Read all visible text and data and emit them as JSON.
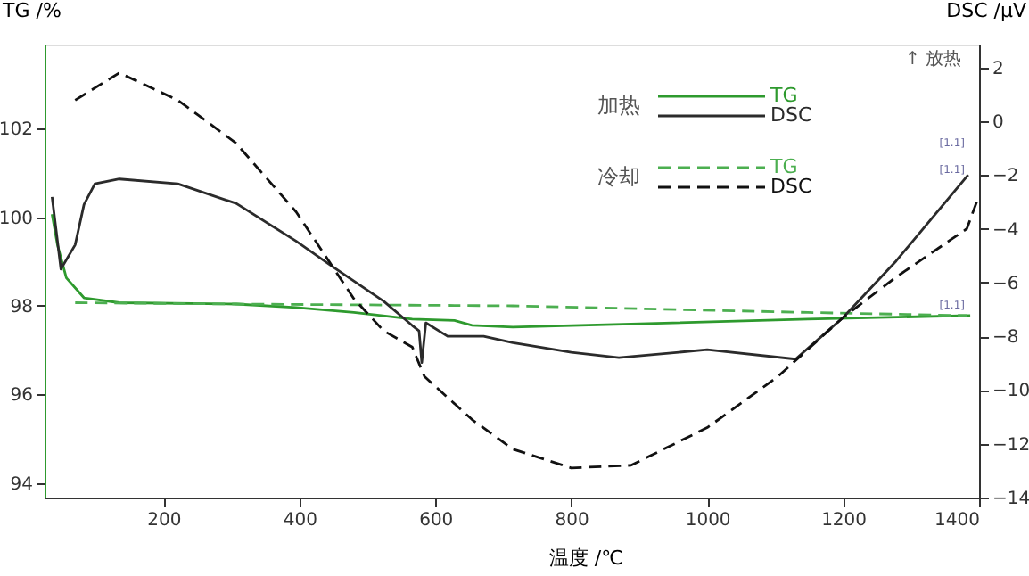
{
  "chart_data": {
    "type": "line",
    "xlabel": "温度 /℃",
    "ylabel": "TG /%",
    "y2label": "DSC /μV",
    "xlim": [
      25,
      1400
    ],
    "xticks": [
      200,
      400,
      600,
      800,
      1000,
      1200,
      1400
    ],
    "ylim": [
      93.67,
      103.9
    ],
    "yticks": [
      94,
      96,
      98,
      100,
      102
    ],
    "y2lim": [
      -14,
      2.85
    ],
    "y2ticks": [
      -14,
      -12,
      -10,
      -8,
      -6,
      -4,
      -2,
      0,
      2
    ],
    "grid": false,
    "legend": "top right",
    "annotations": [
      "加热",
      "冷却",
      "↑ 放热",
      "[1.1]",
      "[1.1]",
      "[1.1]"
    ],
    "series": [
      {
        "name": "TG",
        "color": "#2e9a2e",
        "line_style": "solid",
        "x": [
          36,
          44,
          57,
          83,
          135,
          307,
          395,
          480,
          566,
          628,
          654,
          714,
          888,
          1148,
          1387
        ],
        "values": [
          100.07,
          99.37,
          98.63,
          98.18,
          98.07,
          98.04,
          97.96,
          97.85,
          97.7,
          97.67,
          97.56,
          97.52,
          97.59,
          97.7,
          97.78
        ]
      },
      {
        "name": "DSC",
        "color": "#2b2b2b",
        "line_style": "solid",
        "axis": "y2",
        "x": [
          36,
          49,
          70,
          83,
          99,
          135,
          221,
          307,
          395,
          447,
          524,
          566,
          576,
          580,
          586,
          618,
          671,
          714,
          800,
          870,
          1000,
          1130,
          1164,
          1200,
          1278,
          1384
        ],
        "values": [
          -2.82,
          -5.5,
          -4.6,
          -3.1,
          -2.33,
          -2.15,
          -2.33,
          -3.06,
          -4.46,
          -5.38,
          -6.7,
          -7.6,
          -7.8,
          -8.98,
          -7.5,
          -8.0,
          -8.0,
          -8.24,
          -8.6,
          -8.8,
          -8.5,
          -8.85,
          -8.1,
          -7.3,
          -5.2,
          -2.0
        ]
      },
      {
        "name": "TG",
        "color": "#4caf50",
        "line_style": "dashed",
        "x": [
          70,
          307,
          714,
          1148,
          1382
        ],
        "values": [
          98.07,
          98.04,
          98.0,
          97.85,
          97.78
        ]
      },
      {
        "name": "DSC",
        "color": "#111111",
        "line_style": "dashed",
        "axis": "y2",
        "x": [
          70,
          135,
          221,
          306,
          395,
          480,
          524,
          566,
          584,
          654,
          714,
          800,
          888,
          1000,
          1104,
          1200,
          1278,
          1382,
          1398
        ],
        "values": [
          0.78,
          1.8,
          0.78,
          -0.8,
          -3.37,
          -6.6,
          -7.8,
          -8.4,
          -9.5,
          -11.1,
          -12.2,
          -12.9,
          -12.8,
          -11.4,
          -9.5,
          -7.3,
          -5.8,
          -4.0,
          -2.9
        ]
      }
    ]
  }
}
